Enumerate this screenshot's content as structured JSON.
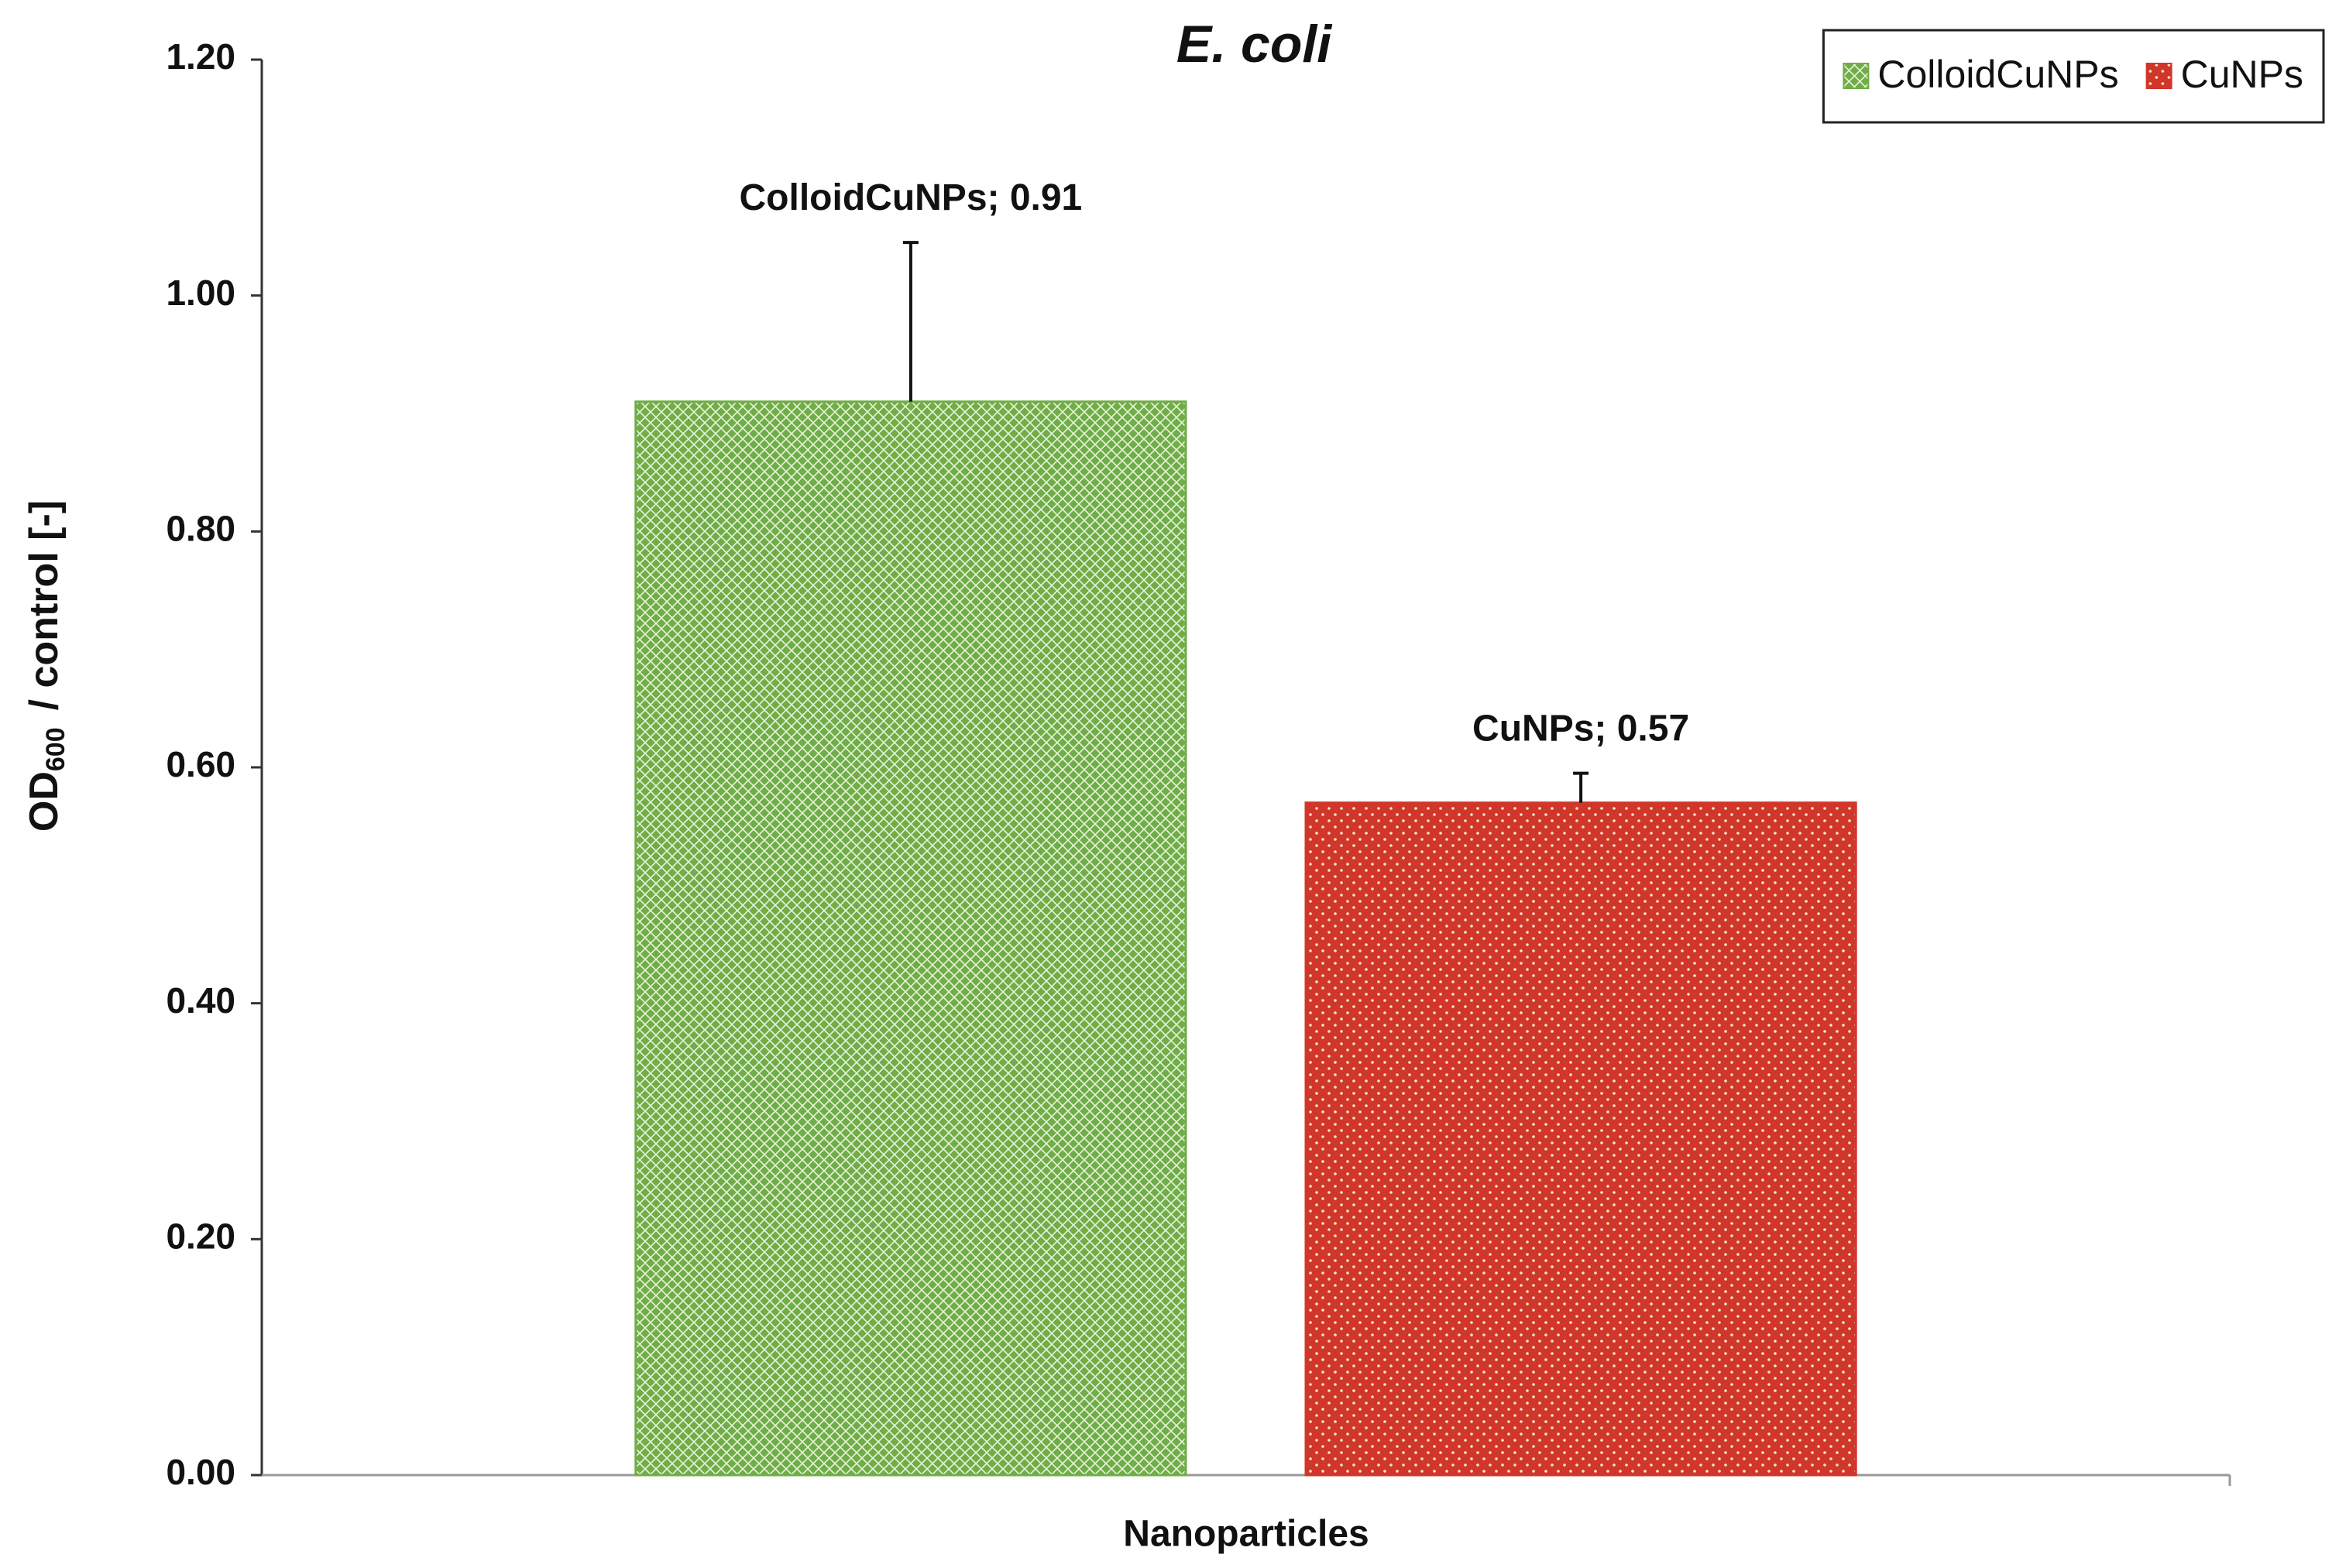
{
  "chart_data": {
    "type": "bar",
    "title": "E. coli",
    "xlabel": "Nanoparticles",
    "ylabel": {
      "text": "OD",
      "subscript": "600",
      "suffix": "/ control [-]"
    },
    "categories": [
      null
    ],
    "series": [
      {
        "name": "ColloidCuNPs",
        "color": "#70ad47",
        "pattern": "crosshatch",
        "values": [
          0.91
        ],
        "errors": [
          0.135
        ],
        "value_labels": [
          "ColloidCuNPs; 0.91"
        ]
      },
      {
        "name": "CuNPs",
        "color": "#d0372a",
        "pattern": "dots",
        "values": [
          0.57
        ],
        "errors": [
          0.025
        ],
        "value_labels": [
          "CuNPs; 0.57"
        ]
      }
    ],
    "ylim": [
      0,
      1.2
    ],
    "yticks": [
      {
        "value": 0,
        "label": "0.00"
      },
      {
        "value": 0.2,
        "label": "0.20"
      },
      {
        "value": 0.4,
        "label": "0.40"
      },
      {
        "value": 0.6,
        "label": "0.60"
      },
      {
        "value": 0.8,
        "label": "0.80"
      },
      {
        "value": 1.0,
        "label": "1.00"
      },
      {
        "value": 1.2,
        "label": "1.20"
      }
    ],
    "grid": false,
    "legend": "top-right"
  }
}
